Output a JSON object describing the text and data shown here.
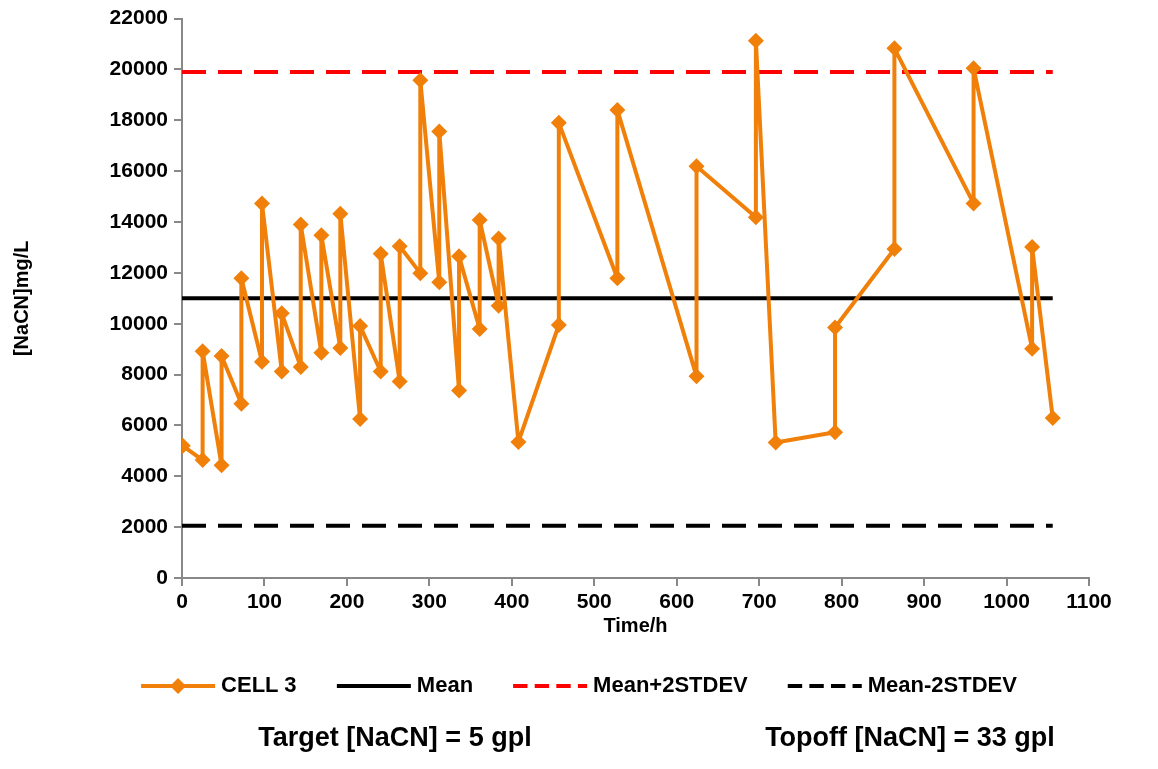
{
  "chart_data": {
    "type": "line",
    "xlabel": "Time/h",
    "ylabel": "[NaCN]mg/L",
    "xlim": [
      0,
      1100
    ],
    "xticks": [
      0,
      100,
      200,
      300,
      400,
      500,
      600,
      700,
      800,
      900,
      1000,
      1100
    ],
    "ylim": [
      0,
      22000
    ],
    "yticks": [
      0,
      2000,
      4000,
      6000,
      8000,
      10000,
      12000,
      14000,
      16000,
      18000,
      20000,
      22000
    ],
    "grid": false,
    "legend": "bottom",
    "annotations": [
      "Target [NaCN] = 5 gpl",
      "Topoff [NaCN] = 33 gpl"
    ],
    "series": [
      {
        "name": "CELL 3",
        "color": "#f0800a",
        "marker": "diamond",
        "line_style": "solid",
        "x": [
          1,
          25,
          25,
          48,
          48,
          72,
          72,
          97,
          97,
          121,
          121,
          144,
          144,
          169,
          169,
          192,
          192,
          216,
          216,
          241,
          241,
          264,
          264,
          289,
          289,
          312,
          312,
          336,
          336,
          361,
          361,
          384,
          384,
          408,
          457,
          457,
          528,
          528,
          624,
          624,
          696,
          696,
          720,
          792,
          792,
          864,
          864,
          960,
          960,
          1031,
          1031,
          1056
        ],
        "values": [
          5200,
          4640,
          8920,
          4430,
          8730,
          6850,
          11790,
          8500,
          14730,
          8120,
          10410,
          8300,
          13900,
          8860,
          13480,
          9050,
          14330,
          6250,
          9910,
          8120,
          12750,
          7730,
          13050,
          11990,
          19580,
          11630,
          17560,
          7370,
          12650,
          9790,
          14080,
          10710,
          13350,
          5350,
          9950,
          17900,
          11790,
          18410,
          7930,
          16190,
          14190,
          21130,
          5330,
          5730,
          9850,
          12940,
          20830,
          14730,
          20050,
          9020,
          13020,
          6290
        ]
      },
      {
        "name": "Mean",
        "color": "#000000",
        "marker": "none",
        "line_style": "solid",
        "x": [
          0,
          1056
        ],
        "values": [
          11000,
          11000
        ]
      },
      {
        "name": "Mean+2STDEV",
        "color": "#ff0000",
        "marker": "none",
        "line_style": "dashed",
        "x": [
          0,
          1056
        ],
        "values": [
          19900,
          19900
        ]
      },
      {
        "name": "Mean-2STDEV",
        "color": "#000000",
        "marker": "none",
        "line_style": "dashed",
        "x": [
          0,
          1056
        ],
        "values": [
          2050,
          2050
        ]
      }
    ]
  }
}
